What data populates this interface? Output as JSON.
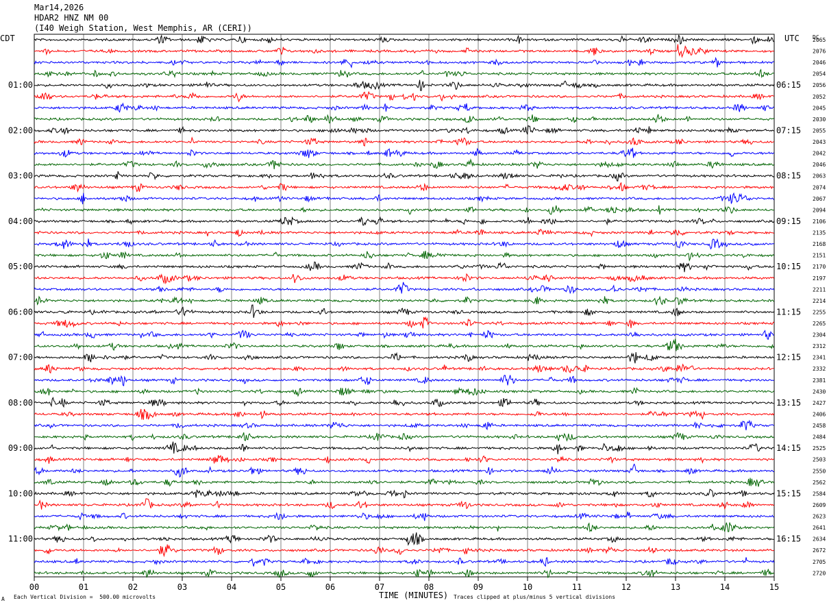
{
  "header": {
    "date": "Mar14,2026",
    "station": "HDAR2 HNZ NM 00",
    "location": "(I40 Weigh Station, West Memphis, AR (CERI))"
  },
  "left_timezone": "CDT",
  "right_timezone": "UTC",
  "dc_header": "DC",
  "footer": {
    "xlabel": "TIME (MINUTES)",
    "scale_note": "Each Vertical Division =  500.00 microvolts",
    "clip_note": "Traces clipped at plus/minus 5 vertical divisions",
    "corner_mark": "A"
  },
  "colors": {
    "trace_cycle": [
      "#000000",
      "#ff0000",
      "#0000ff",
      "#006400"
    ],
    "grid": "#808080"
  },
  "chart_data": {
    "type": "line",
    "description_kind": "helicorder",
    "x_ticks": [
      "00",
      "01",
      "02",
      "03",
      "04",
      "05",
      "06",
      "07",
      "08",
      "09",
      "10",
      "11",
      "12",
      "13",
      "14",
      "15"
    ],
    "xlim": [
      0,
      15
    ],
    "left_time_labels": [
      "01:00",
      "02:00",
      "03:00",
      "04:00",
      "05:00",
      "06:00",
      "07:00",
      "08:00",
      "09:00",
      "10:00",
      "11:00"
    ],
    "right_time_labels": [
      "06:15",
      "07:15",
      "08:15",
      "09:15",
      "10:15",
      "11:15",
      "12:15",
      "13:15",
      "14:15",
      "15:15",
      "16:15"
    ],
    "dc_offsets": [
      "2065",
      "2076",
      "2046",
      "2054",
      "2056",
      "2052",
      "2045",
      "2030",
      "2055",
      "2043",
      "2042",
      "2046",
      "2063",
      "2074",
      "2067",
      "2094",
      "2106",
      "2135",
      "2168",
      "2151",
      "2170",
      "2197",
      "2211",
      "2214",
      "2255",
      "2265",
      "2304",
      "2312",
      "2341",
      "2332",
      "2381",
      "2430",
      "2427",
      "2406",
      "2458",
      "2484",
      "2525",
      "2503",
      "2550",
      "2562",
      "2584",
      "2609",
      "2623",
      "2641",
      "2634",
      "2672",
      "2705",
      "2720"
    ],
    "trace_count": 48,
    "grid": true
  }
}
